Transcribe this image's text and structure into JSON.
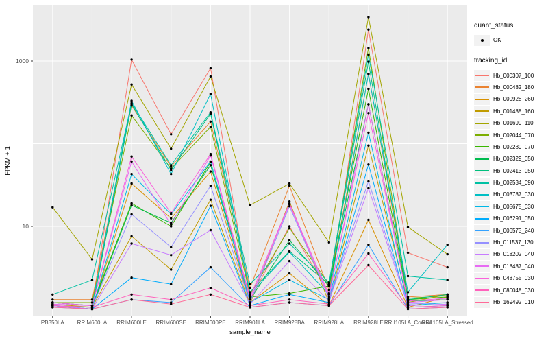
{
  "colors": {
    "panel_bg": "#ebebeb",
    "grid": "#ffffff",
    "tick_text": "#4d4d4d",
    "axis_title": "#000000",
    "point": "#000000",
    "legend_key_bg": "#f2f2f2"
  },
  "legend": {
    "quant_status_title": "quant_status",
    "quant_status_items": [
      {
        "label": "OK",
        "marker": "point"
      }
    ],
    "tracking_id_title": "tracking_id"
  },
  "chart_data": {
    "type": "line",
    "title": "",
    "xlabel": "sample_name",
    "ylabel": "FPKM + 1",
    "y_scale": "log10",
    "y_tick_labels": [
      "1000",
      "10"
    ],
    "y_tick_values": [
      1000,
      10
    ],
    "y_gridline_values": [
      1,
      10,
      100,
      1000
    ],
    "ylim": [
      1,
      4700
    ],
    "legend_position": "right",
    "grid": true,
    "categories": [
      "PB350LA",
      "RRIM600LA",
      "RRIM600LE",
      "RRIM600SE",
      "RRIM600PE",
      "RRIM901LA",
      "RRIM928BA",
      "RRIM928LA",
      "RRIM928LE",
      "RRII105LA_Control",
      "RRII105LA_Stressed"
    ],
    "series": [
      {
        "name": "Hb_000307_100",
        "color": "#F8766D",
        "values": [
          1.2,
          1.1,
          1040,
          130,
          820,
          1.3,
          10,
          1.55,
          2400,
          4.8,
          3.2
        ]
      },
      {
        "name": "Hb_000482_180",
        "color": "#EA8331",
        "values": [
          1.3,
          1.3,
          290,
          53,
          185,
          1.8,
          31,
          1.7,
          700,
          1.4,
          1.5
        ]
      },
      {
        "name": "Hb_000928_260",
        "color": "#D89000",
        "values": [
          1.1,
          1.0,
          33,
          12.5,
          46,
          1.2,
          2.7,
          1.1,
          12,
          1.05,
          1.4
        ]
      },
      {
        "name": "Hb_001488_160",
        "color": "#C09B00",
        "values": [
          1.15,
          1.05,
          7.6,
          3.0,
          21,
          1.15,
          20,
          1.2,
          95,
          1.2,
          1.5
        ]
      },
      {
        "name": "Hb_001699_110",
        "color": "#A3A500",
        "values": [
          17,
          4.0,
          520,
          87,
          650,
          18,
          33,
          6.4,
          3400,
          9.8,
          4.6
        ]
      },
      {
        "name": "Hb_002044_070",
        "color": "#7CAE00",
        "values": [
          1.2,
          1.2,
          220,
          50,
          160,
          1.5,
          9.5,
          2.0,
          1440,
          1.35,
          1.45
        ]
      },
      {
        "name": "Hb_002289_070",
        "color": "#39B600",
        "values": [
          1.2,
          1.1,
          19,
          10,
          60,
          1.4,
          1.55,
          1.9,
          460,
          1.3,
          1.4
        ]
      },
      {
        "name": "Hb_002329_050",
        "color": "#00BB4E",
        "values": [
          1.1,
          1.05,
          18,
          11,
          55,
          1.3,
          6.8,
          1.9,
          300,
          1.25,
          1.3
        ]
      },
      {
        "name": "Hb_002413_050",
        "color": "#00BF7D",
        "values": [
          1.1,
          1.0,
          300,
          48,
          230,
          1.6,
          5.0,
          2.0,
          980,
          1.3,
          1.5
        ]
      },
      {
        "name": "Hb_002534_090",
        "color": "#00C1A3",
        "values": [
          1.5,
          2.25,
          310,
          55,
          240,
          2.0,
          6.2,
          2.1,
          1200,
          2.5,
          2.25
        ]
      },
      {
        "name": "Hb_003787_030",
        "color": "#00BFC4",
        "values": [
          1.2,
          1.1,
          330,
          43,
          400,
          1.5,
          4.9,
          1.5,
          700,
          1.6,
          6.0
        ]
      },
      {
        "name": "Hb_005675_030",
        "color": "#00B8E7",
        "values": [
          1.1,
          1.0,
          43,
          14,
          61,
          1.2,
          2.25,
          1.3,
          136,
          1.1,
          1.2
        ]
      },
      {
        "name": "Hb_006291_050",
        "color": "#00ACFC",
        "values": [
          1.1,
          1.0,
          2.4,
          2.0,
          17.7,
          1.1,
          1.5,
          1.2,
          56,
          1.05,
          1.1
        ]
      },
      {
        "name": "Hb_006573_240",
        "color": "#35A2FF",
        "values": [
          1.05,
          1.0,
          1.3,
          1.2,
          3.2,
          1.05,
          1.2,
          1.1,
          6.0,
          1.0,
          1.05
        ]
      },
      {
        "name": "Hb_011537_130",
        "color": "#9590FF",
        "values": [
          1.1,
          1.05,
          14,
          5.6,
          31,
          1.2,
          17.5,
          1.35,
          35,
          1.15,
          1.2
        ]
      },
      {
        "name": "Hb_018202_040",
        "color": "#C77CFF",
        "values": [
          1.1,
          1.0,
          6.2,
          4.5,
          9.0,
          1.15,
          3.8,
          1.25,
          29,
          1.1,
          1.15
        ]
      },
      {
        "name": "Hb_018487_040",
        "color": "#E76BF3",
        "values": [
          1.15,
          1.1,
          61,
          10.5,
          72,
          1.3,
          18.5,
          1.4,
          300,
          1.2,
          1.3
        ]
      },
      {
        "name": "Hb_048755_030",
        "color": "#FA62DB",
        "values": [
          1.2,
          1.1,
          70,
          14.5,
          75,
          1.4,
          19,
          1.5,
          235,
          1.25,
          1.35
        ]
      },
      {
        "name": "Hb_080048_030",
        "color": "#FF62BC",
        "values": [
          1.1,
          1.05,
          1.5,
          1.3,
          1.8,
          1.1,
          1.3,
          1.15,
          4.7,
          1.05,
          1.1
        ]
      },
      {
        "name": "Hb_169492_010",
        "color": "#FF6A98",
        "values": [
          1.05,
          1.0,
          1.3,
          1.15,
          1.5,
          1.05,
          1.2,
          1.1,
          3.4,
          1.0,
          1.05
        ]
      }
    ]
  }
}
